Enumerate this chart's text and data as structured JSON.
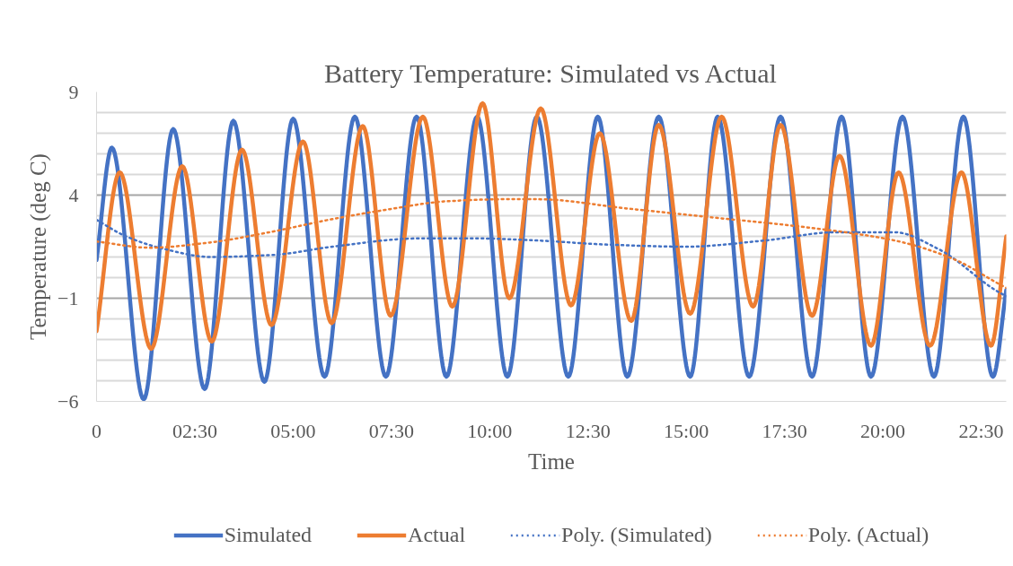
{
  "chart_data": {
    "type": "line",
    "title": "Battery Temperature: Simulated vs Actual",
    "xlabel": "Time",
    "ylabel": "Temperature (deg C)",
    "xlim": [
      0,
      23.14
    ],
    "ylim": [
      -6,
      9
    ],
    "xticks": [
      0,
      {
        "value": 2.5,
        "label": "02:30"
      },
      {
        "value": 5,
        "label": "05:00"
      },
      {
        "value": 7.5,
        "label": "07:30"
      },
      {
        "value": 10,
        "label": "10:00"
      },
      {
        "value": 12.5,
        "label": "12:30"
      },
      {
        "value": 15,
        "label": "15:00"
      },
      {
        "value": 17.5,
        "label": "17:30"
      },
      {
        "value": 20,
        "label": "20:00"
      },
      {
        "value": 22.5,
        "label": "22:30"
      }
    ],
    "yticks": [
      -6,
      {
        "value": -5,
        "label": null
      },
      {
        "value": -4,
        "label": null
      },
      {
        "value": -3,
        "label": null
      },
      {
        "value": -2,
        "label": null
      },
      -1,
      {
        "value": 0,
        "label": null
      },
      {
        "value": 1,
        "label": null
      },
      {
        "value": 2,
        "label": null
      },
      {
        "value": 3,
        "label": null
      },
      4,
      {
        "value": 5,
        "label": null
      },
      {
        "value": 6,
        "label": null
      },
      {
        "value": 7,
        "label": null
      },
      {
        "value": 8,
        "label": null
      },
      9
    ],
    "grid": "y",
    "legend": "bottom",
    "marker": "none",
    "series": [
      {
        "name": "Simulated",
        "color": "#4472c4",
        "line_style": "solid",
        "x": [
          0,
          0.39,
          1.2,
          1.95,
          2.75,
          3.48,
          4.27,
          5.0,
          5.8,
          6.57,
          7.36,
          8.14,
          8.9,
          9.68,
          10.45,
          11.2,
          12.0,
          12.75,
          13.5,
          14.3,
          15.1,
          15.8,
          16.6,
          17.4,
          18.2,
          18.95,
          19.7,
          20.5,
          21.3,
          22.05,
          22.8,
          23.14
        ],
        "values": [
          0.85,
          6.3,
          -5.9,
          7.2,
          -5.4,
          7.6,
          -5.05,
          7.7,
          -4.8,
          7.8,
          -4.8,
          7.8,
          -4.8,
          7.8,
          -4.8,
          7.8,
          -4.8,
          7.8,
          -4.8,
          7.8,
          -4.8,
          7.8,
          -4.8,
          7.8,
          -4.8,
          7.8,
          -4.8,
          7.8,
          -4.8,
          7.8,
          -4.8,
          -0.6
        ]
      },
      {
        "name": "Actual",
        "color": "#ed7d31",
        "line_style": "solid",
        "x": [
          0,
          0.59,
          1.39,
          2.18,
          2.93,
          3.7,
          4.45,
          5.25,
          5.98,
          6.77,
          7.48,
          8.3,
          9.05,
          9.82,
          10.5,
          11.3,
          12.07,
          12.8,
          13.6,
          14.3,
          15.1,
          15.9,
          16.7,
          17.4,
          18.2,
          18.9,
          19.7,
          20.4,
          21.2,
          22.0,
          22.75,
          23.14
        ],
        "values": [
          -2.6,
          5.1,
          -3.45,
          5.4,
          -3.1,
          6.2,
          -2.3,
          6.6,
          -2.2,
          7.35,
          -1.85,
          7.8,
          -1.4,
          8.45,
          -1.0,
          8.2,
          -1.35,
          7.0,
          -2.1,
          7.4,
          -1.75,
          7.8,
          -1.4,
          7.4,
          -1.85,
          5.9,
          -3.3,
          5.1,
          -3.3,
          5.1,
          -3.3,
          2.0
        ]
      },
      {
        "name": "Poly. (Simulated)",
        "color": "#4472c4",
        "line_style": "dotted",
        "x": [
          0,
          0.75,
          1.7,
          2.9,
          4.5,
          6,
          8.2,
          9.7,
          11.2,
          13,
          15,
          17,
          18.8,
          20.3,
          21.4,
          22.9,
          23.14
        ],
        "values": [
          2.8,
          2.0,
          1.4,
          1.0,
          1.1,
          1.5,
          1.9,
          1.9,
          1.8,
          1.6,
          1.5,
          1.8,
          2.2,
          2.2,
          1.4,
          -0.65,
          -0.9
        ]
      },
      {
        "name": "Poly. (Actual)",
        "color": "#ed7d31",
        "line_style": "dotted",
        "x": [
          0,
          1.36,
          2.87,
          4.4,
          5.9,
          7.4,
          8.9,
          10.4,
          11.2,
          13.5,
          15.75,
          18,
          20.3,
          21.8,
          22.9,
          23.14
        ],
        "values": [
          1.75,
          1.45,
          1.7,
          2.2,
          2.8,
          3.3,
          3.7,
          3.8,
          3.8,
          3.35,
          2.9,
          2.45,
          1.8,
          0.9,
          -0.25,
          -0.5
        ]
      }
    ]
  }
}
